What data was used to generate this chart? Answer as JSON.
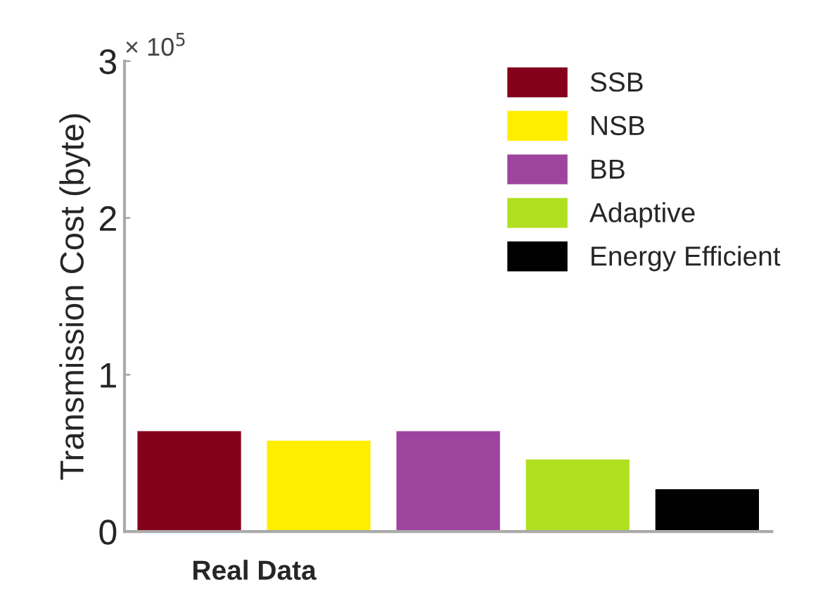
{
  "chart_data": {
    "type": "bar",
    "ylabel": "Transmission Cost (byte)",
    "xlabel": "Real Data",
    "categories": [
      null,
      null,
      null,
      null,
      null
    ],
    "series": [
      {
        "name": "SSB",
        "color": "#85001a",
        "values": [
          0.64,
          null,
          null,
          null,
          null
        ]
      },
      {
        "name": "NSB",
        "color": "#ffee00",
        "values": [
          null,
          0.58,
          null,
          null,
          null
        ]
      },
      {
        "name": "BB",
        "color": "#9e449e",
        "values": [
          null,
          null,
          0.64,
          null,
          null
        ]
      },
      {
        "name": "Adaptive",
        "color": "#b0e020",
        "values": [
          null,
          null,
          null,
          0.46,
          null
        ]
      },
      {
        "name": "Energy Efficient",
        "color": "#000000",
        "values": [
          null,
          null,
          null,
          null,
          0.27
        ]
      }
    ],
    "ylim": [
      0,
      3
    ],
    "yticks": [
      0,
      1,
      2,
      3
    ],
    "annotations": [
      "× 10$^{5}$"
    ],
    "grid": false,
    "legend": "top right"
  }
}
